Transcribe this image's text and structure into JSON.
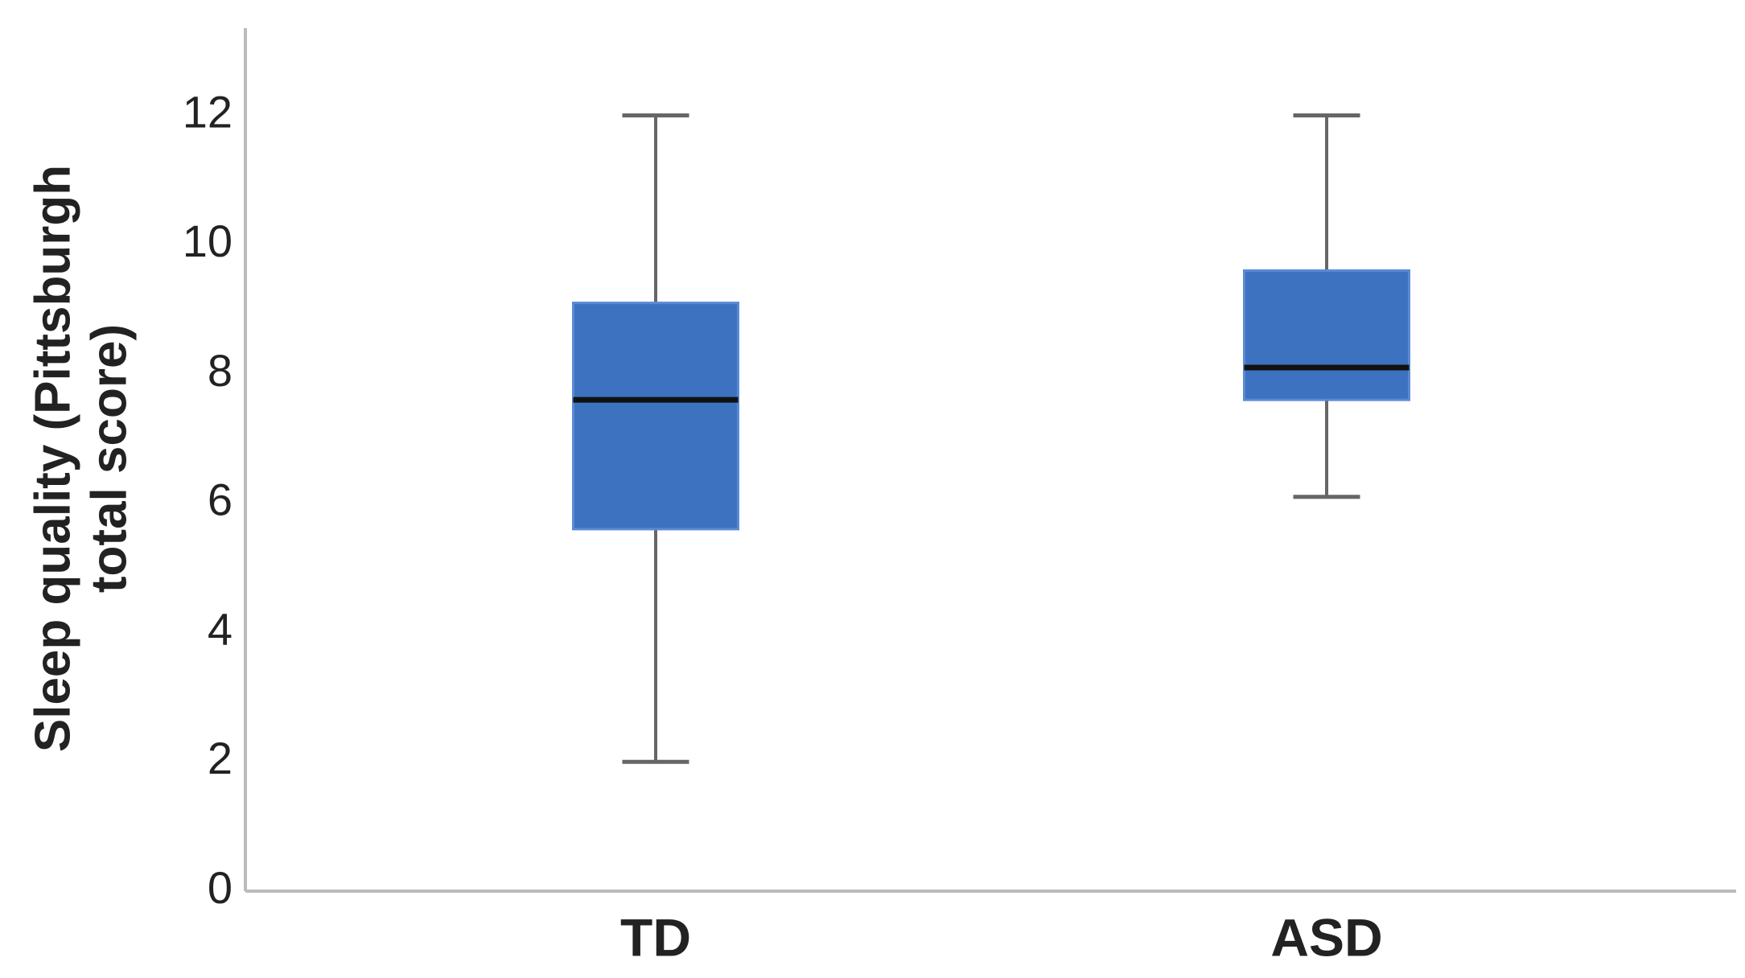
{
  "chart_data": {
    "type": "box",
    "y_label": [
      "Sleep quality (Pittsburgh",
      "total score)"
    ],
    "categories": [
      "TD",
      "ASD"
    ],
    "boxes": [
      {
        "min": 2,
        "q1": 5.6,
        "median": 7.6,
        "q3": 9.1,
        "max": 12
      },
      {
        "min": 6.1,
        "q1": 7.6,
        "median": 8.1,
        "q3": 9.6,
        "max": 12
      }
    ],
    "color": "#3d72c0",
    "ylim": [
      0,
      13.35
    ],
    "yticks": [
      0,
      2,
      4,
      6,
      8,
      10,
      12
    ],
    "grid": false
  }
}
